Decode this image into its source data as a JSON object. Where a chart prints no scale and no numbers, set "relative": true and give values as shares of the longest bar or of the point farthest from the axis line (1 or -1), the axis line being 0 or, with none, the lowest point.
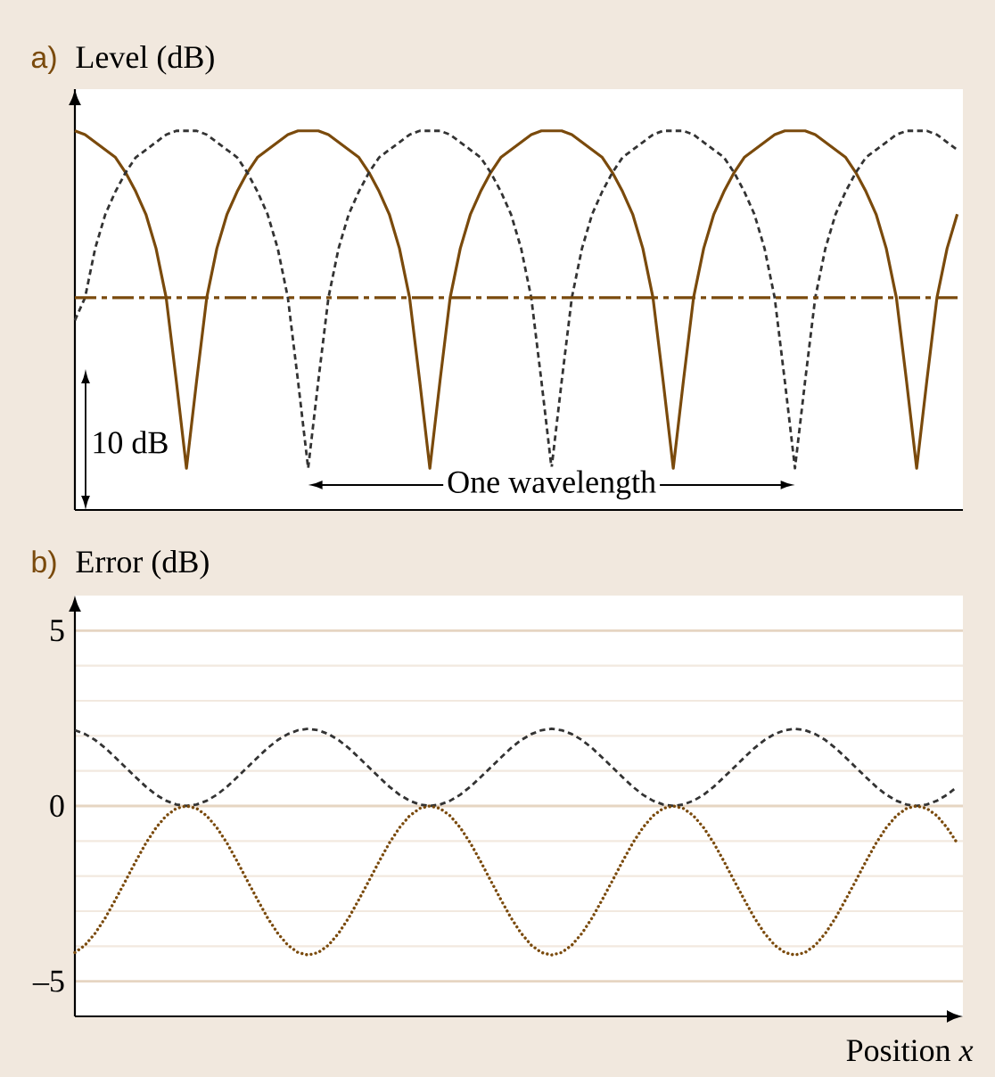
{
  "chart_data": [
    {
      "type": "line",
      "title": "Level (dB)",
      "relative": true,
      "annotations": [
        "a)",
        "10 dB",
        "One wavelength"
      ],
      "categories": [
        null,
        null,
        null,
        null,
        null,
        null,
        null,
        null,
        null,
        null,
        null,
        null,
        null,
        null,
        null,
        null,
        null,
        null,
        null,
        null,
        null,
        null,
        null,
        null,
        null,
        null,
        null,
        null,
        null,
        null,
        null,
        null,
        null,
        null,
        null,
        null,
        null,
        null,
        null,
        null,
        null,
        null,
        null,
        null,
        null,
        null,
        null,
        null,
        null,
        null,
        null,
        null,
        null,
        null,
        null,
        null,
        null,
        null,
        null,
        null,
        null,
        null,
        null,
        null,
        null,
        null,
        null,
        null,
        null,
        null,
        null,
        null,
        null,
        null,
        null,
        null,
        null,
        null,
        null,
        null,
        null,
        null,
        null,
        null,
        null,
        null,
        null,
        null
      ],
      "series": [
        {
          "color": "#7a4a0c",
          "line_style": "solid",
          "values": [
            1,
            0.99,
            0.97,
            0.95,
            0.93,
            0.89,
            0.84,
            0.78,
            0.69,
            0.56,
            0.34,
            0.11,
            0.34,
            0.56,
            0.69,
            0.78,
            0.84,
            0.89,
            0.93,
            0.95,
            0.97,
            0.99,
            1,
            1,
            1,
            0.99,
            0.97,
            0.95,
            0.93,
            0.89,
            0.84,
            0.78,
            0.69,
            0.56,
            0.34,
            0.11,
            0.34,
            0.56,
            0.69,
            0.78,
            0.84,
            0.89,
            0.93,
            0.95,
            0.97,
            0.99,
            1,
            1,
            1,
            0.99,
            0.97,
            0.95,
            0.93,
            0.89,
            0.84,
            0.78,
            0.69,
            0.56,
            0.34,
            0.11,
            0.34,
            0.56,
            0.69,
            0.78,
            0.84,
            0.89,
            0.93,
            0.95,
            0.97,
            0.99,
            1,
            1,
            1,
            0.99,
            0.97,
            0.95,
            0.93,
            0.89,
            0.84,
            0.78,
            0.69,
            0.56,
            0.34,
            0.11,
            0.34,
            0.56,
            0.69,
            0.78
          ]
        },
        {
          "color": "#333333",
          "line_style": "dashed",
          "values": [
            0.5,
            0.56,
            0.69,
            0.78,
            0.84,
            0.89,
            0.93,
            0.95,
            0.97,
            0.99,
            1,
            1,
            1,
            0.99,
            0.97,
            0.95,
            0.93,
            0.89,
            0.84,
            0.78,
            0.69,
            0.56,
            0.34,
            0.11,
            0.34,
            0.56,
            0.69,
            0.78,
            0.84,
            0.89,
            0.93,
            0.95,
            0.97,
            0.99,
            1,
            1,
            1,
            0.99,
            0.97,
            0.95,
            0.93,
            0.89,
            0.84,
            0.78,
            0.69,
            0.56,
            0.34,
            0.11,
            0.34,
            0.56,
            0.69,
            0.78,
            0.84,
            0.89,
            0.93,
            0.95,
            0.97,
            0.99,
            1,
            1,
            1,
            0.99,
            0.97,
            0.95,
            0.93,
            0.89,
            0.84,
            0.78,
            0.69,
            0.56,
            0.34,
            0.11,
            0.34,
            0.56,
            0.69,
            0.78,
            0.84,
            0.89,
            0.93,
            0.95,
            0.97,
            0.99,
            1,
            1,
            1,
            0.99,
            0.97,
            0.95
          ]
        }
      ],
      "ref_lines": [
        {
          "axis": "y",
          "value": 0.56,
          "color": "#7a4a0c",
          "line_style": "dashdot"
        }
      ]
    },
    {
      "type": "line",
      "title": "Error (dB)",
      "xlabel": "Position *x*",
      "grid": "y",
      "annotations": [
        "b)"
      ],
      "ylim": [
        -6,
        6
      ],
      "yticks": [
        {
          "value": -5,
          "label": "–5"
        },
        {
          "value": -4,
          "label": null
        },
        {
          "value": -3,
          "label": null
        },
        {
          "value": -2,
          "label": null
        },
        {
          "value": -1,
          "label": null
        },
        0,
        {
          "value": 1,
          "label": null
        },
        {
          "value": 2,
          "label": null
        },
        {
          "value": 3,
          "label": null
        },
        {
          "value": 4,
          "label": null
        },
        5
      ],
      "categories": [
        null,
        null,
        null,
        null,
        null,
        null,
        null,
        null,
        null,
        null,
        null,
        null,
        null,
        null,
        null,
        null,
        null,
        null,
        null,
        null,
        null,
        null,
        null,
        null,
        null,
        null,
        null,
        null,
        null,
        null,
        null,
        null,
        null,
        null,
        null,
        null,
        null,
        null,
        null,
        null,
        null,
        null,
        null,
        null,
        null,
        null,
        null,
        null,
        null,
        null,
        null,
        null,
        null,
        null,
        null,
        null,
        null,
        null,
        null,
        null,
        null,
        null,
        null,
        null,
        null,
        null,
        null,
        null,
        null,
        null,
        null,
        null,
        null,
        null,
        null,
        null,
        null,
        null,
        null,
        null,
        null,
        null,
        null,
        null,
        null,
        null,
        null,
        null
      ],
      "series": [
        {
          "color": "#333333",
          "line_style": "dashed",
          "values": [
            2.16,
            2.05,
            1.88,
            1.65,
            1.38,
            1.1,
            0.82,
            0.55,
            0.32,
            0.15,
            0.04,
            0,
            0.04,
            0.15,
            0.32,
            0.55,
            0.82,
            1.1,
            1.38,
            1.65,
            1.88,
            2.05,
            2.16,
            2.2,
            2.16,
            2.05,
            1.88,
            1.65,
            1.38,
            1.1,
            0.82,
            0.55,
            0.32,
            0.15,
            0.04,
            0,
            0.04,
            0.15,
            0.32,
            0.55,
            0.82,
            1.1,
            1.38,
            1.65,
            1.88,
            2.05,
            2.16,
            2.2,
            2.16,
            2.05,
            1.88,
            1.65,
            1.38,
            1.1,
            0.82,
            0.55,
            0.32,
            0.15,
            0.04,
            0,
            0.04,
            0.15,
            0.32,
            0.55,
            0.82,
            1.1,
            1.38,
            1.65,
            1.88,
            2.05,
            2.16,
            2.2,
            2.16,
            2.05,
            1.88,
            1.65,
            1.38,
            1.1,
            0.82,
            0.55,
            0.32,
            0.15,
            0.04,
            0,
            0.04,
            0.15,
            0.32,
            0.55
          ]
        },
        {
          "color": "#7a4a0c",
          "line_style": "dotted",
          "values": [
            -4.18,
            -3.97,
            -3.63,
            -3.19,
            -2.67,
            -2.13,
            -1.58,
            -1.06,
            -0.62,
            -0.28,
            -0.07,
            0,
            -0.07,
            -0.28,
            -0.62,
            -1.06,
            -1.58,
            -2.13,
            -2.67,
            -3.19,
            -3.63,
            -3.97,
            -4.18,
            -4.25,
            -4.18,
            -3.97,
            -3.63,
            -3.19,
            -2.67,
            -2.13,
            -1.58,
            -1.06,
            -0.62,
            -0.28,
            -0.07,
            0,
            -0.07,
            -0.28,
            -0.62,
            -1.06,
            -1.58,
            -2.13,
            -2.67,
            -3.19,
            -3.63,
            -3.97,
            -4.18,
            -4.25,
            -4.18,
            -3.97,
            -3.63,
            -3.19,
            -2.67,
            -2.13,
            -1.58,
            -1.06,
            -0.62,
            -0.28,
            -0.07,
            0,
            -0.07,
            -0.28,
            -0.62,
            -1.06,
            -1.58,
            -2.13,
            -2.67,
            -3.19,
            -3.63,
            -3.97,
            -4.18,
            -4.25,
            -4.18,
            -3.97,
            -3.63,
            -3.19,
            -2.67,
            -2.13,
            -1.58,
            -1.06,
            -0.62,
            -0.28,
            -0.07,
            0,
            -0.07,
            -0.28,
            -0.62,
            -1.06
          ]
        }
      ]
    }
  ]
}
